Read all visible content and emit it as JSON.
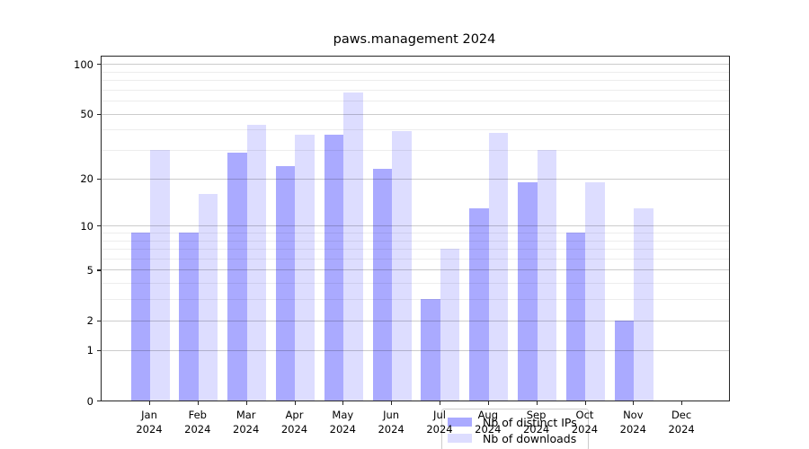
{
  "title": "paws.management 2024",
  "legend": {
    "items": [
      {
        "label": "Nb of distinct IPs",
        "color": "#aaaaff"
      },
      {
        "label": "Nb of downloads",
        "color": "#ddddff"
      }
    ]
  },
  "chart_data": {
    "type": "bar",
    "title": "paws.management 2024",
    "y_scale": "log1p",
    "categories": [
      "Jan",
      "Feb",
      "Mar",
      "Apr",
      "May",
      "Jun",
      "Jul",
      "Aug",
      "Sep",
      "Oct",
      "Nov",
      "Dec"
    ],
    "year_label": "2024",
    "series": [
      {
        "name": "Nb of distinct IPs",
        "color": "#aaaaff",
        "values": [
          9,
          9,
          29,
          24,
          37,
          23,
          3,
          13,
          19,
          9,
          2,
          0
        ]
      },
      {
        "name": "Nb of downloads",
        "color": "#ddddff",
        "values": [
          30,
          16,
          43,
          37,
          67,
          39,
          7,
          38,
          30,
          19,
          13,
          0
        ]
      }
    ],
    "y_axis": {
      "major_ticks": [
        0,
        1,
        2,
        5,
        10,
        20,
        50,
        100
      ],
      "minor_ticks": [
        3,
        4,
        6,
        7,
        8,
        9,
        30,
        40,
        60,
        70,
        80,
        90
      ],
      "ylim": [
        0,
        100
      ]
    },
    "grid": true,
    "legend_position": "lower center"
  }
}
